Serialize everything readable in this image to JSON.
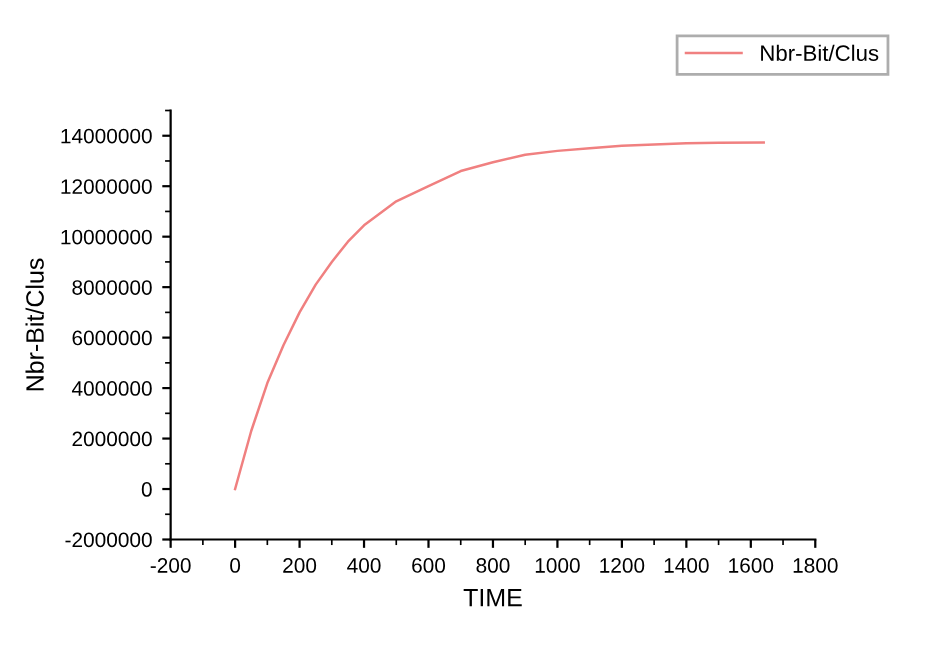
{
  "chart_data": {
    "type": "line",
    "xlabel": "TIME",
    "ylabel": "Nbr-Bit/Clus",
    "x": [
      0,
      50,
      100,
      150,
      200,
      250,
      300,
      350,
      400,
      500,
      600,
      700,
      800,
      900,
      1000,
      1100,
      1200,
      1300,
      1400,
      1500,
      1640
    ],
    "series": [
      {
        "name": "Nbr-Bit/Clus",
        "color": "#f08080",
        "values": [
          0,
          2300000,
          4200000,
          5700000,
          7000000,
          8100000,
          9000000,
          9800000,
          10450000,
          11400000,
          12000000,
          12600000,
          12950000,
          13250000,
          13400000,
          13500000,
          13600000,
          13650000,
          13700000,
          13720000,
          13730000
        ]
      }
    ],
    "xlim": [
      -200,
      1800
    ],
    "xticks": [
      -200,
      0,
      200,
      400,
      600,
      800,
      1000,
      1200,
      1400,
      1600,
      1800
    ],
    "ylim": [
      -2000000,
      15000000
    ],
    "yticks": [
      -2000000,
      0,
      2000000,
      4000000,
      6000000,
      8000000,
      10000000,
      12000000,
      14000000
    ],
    "grid": false,
    "legend": "top right",
    "marker": "none",
    "line_style": "solid"
  }
}
